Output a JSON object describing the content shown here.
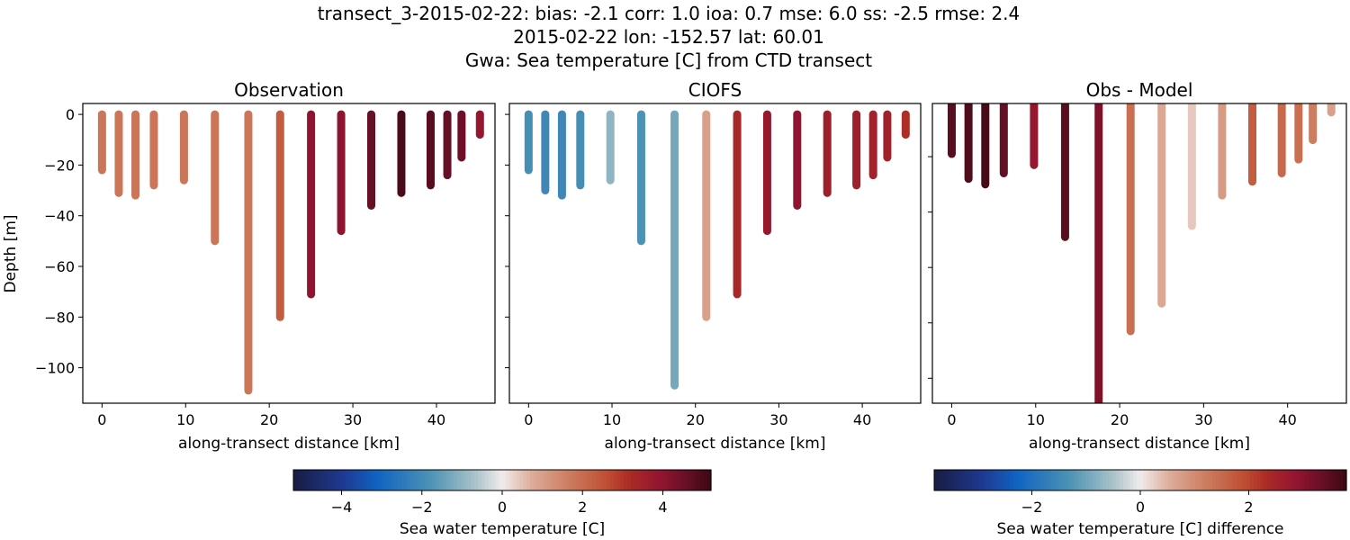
{
  "title_lines": [
    "transect_3-2015-02-22: bias: -2.1  corr: 1.0  ioa: 0.7  mse: 6.0  ss: -2.5  rmse: 2.4",
    "2015-02-22 lon: -152.57 lat: 60.01",
    "Gwa: Sea temperature [C] from CTD transect"
  ],
  "chart_data": [
    {
      "type": "scatter",
      "title": "Observation",
      "xlabel": "along-transect distance [km]",
      "ylabel": "Depth [m]",
      "xlim": [
        -2.3,
        47
      ],
      "ylim": [
        -114,
        4.3
      ],
      "xticks": [
        0,
        10,
        20,
        30,
        40
      ],
      "yticks": [
        0,
        -20,
        -40,
        -60,
        -80,
        -100
      ],
      "show_ytick_labels": true,
      "colormap": "balance",
      "clim": [
        -5.2,
        5.2
      ],
      "stations": {
        "x": [
          0,
          2,
          4,
          6.2,
          9.8,
          13.5,
          17.5,
          21.3,
          25,
          28.6,
          32.2,
          35.8,
          39.3,
          41.3,
          43,
          45.2
        ],
        "max_depth": [
          -22,
          -31,
          -32,
          -28,
          -26,
          -50,
          -109,
          -80,
          -71,
          -46,
          -36,
          -31,
          -28,
          -24,
          -17,
          -8
        ],
        "value": [
          1.8,
          1.8,
          1.8,
          1.8,
          1.8,
          1.8,
          1.8,
          2.3,
          4.0,
          4.0,
          4.6,
          5.0,
          4.8,
          4.6,
          4.5,
          3.9
        ]
      }
    },
    {
      "type": "scatter",
      "title": "CIOFS",
      "xlabel": "along-transect distance [km]",
      "xlim": [
        -2.3,
        47
      ],
      "ylim": [
        -114,
        4.3
      ],
      "xticks": [
        0,
        10,
        20,
        30,
        40
      ],
      "yticks": [
        0,
        -20,
        -40,
        -60,
        -80,
        -100
      ],
      "show_ytick_labels": false,
      "colormap": "balance",
      "clim": [
        -5.2,
        5.2
      ],
      "stations": {
        "x": [
          0,
          2,
          4,
          6.2,
          9.8,
          13.5,
          17.5,
          21.3,
          25,
          28.6,
          32.2,
          35.8,
          39.3,
          41.3,
          43,
          45.2
        ],
        "max_depth": [
          -22,
          -30,
          -32,
          -28,
          -26,
          -50,
          -107,
          -80,
          -71,
          -46,
          -36,
          -31,
          -28,
          -24,
          -17,
          -8
        ],
        "value": [
          -1.9,
          -2.1,
          -2.1,
          -1.9,
          -1.0,
          -1.8,
          -1.3,
          1.0,
          3.3,
          3.8,
          4.0,
          3.6,
          3.6,
          3.5,
          3.5,
          3.1
        ]
      }
    },
    {
      "type": "scatter",
      "title": "Obs - Model",
      "xlabel": "along-transect distance [km]",
      "xlim": [
        -2.3,
        47
      ],
      "ylim": [
        -109,
        -0.8
      ],
      "xticks": [
        0,
        10,
        20,
        30,
        40
      ],
      "yticks": [
        -20,
        -40,
        -60,
        -80,
        -100
      ],
      "show_ytick_labels": false,
      "colormap": "balance",
      "clim": [
        -3.8,
        3.8
      ],
      "stations": {
        "x": [
          0,
          2,
          4,
          6.2,
          9.8,
          13.5,
          17.5,
          21.3,
          25,
          28.6,
          32.2,
          35.8,
          39.3,
          41.3,
          43,
          45.2
        ],
        "max_depth": [
          -19,
          -28,
          -30,
          -26,
          -23,
          -49,
          -113,
          -83,
          -73,
          -45,
          -34,
          -29,
          -26,
          -21,
          -14,
          -4
        ],
        "value": [
          3.5,
          3.6,
          3.7,
          3.4,
          2.8,
          3.5,
          3.1,
          1.4,
          0.6,
          0.3,
          0.8,
          1.7,
          1.5,
          1.4,
          1.2,
          0.7
        ]
      }
    }
  ],
  "colorbars": [
    {
      "label": "Sea water temperature [C]",
      "range": [
        -5.2,
        5.2
      ],
      "ticks": [
        -4,
        -2,
        0,
        2,
        4
      ]
    },
    {
      "label": "Sea water temperature [C] difference",
      "range": [
        -3.8,
        3.8
      ],
      "ticks": [
        -2,
        0,
        2
      ]
    }
  ]
}
